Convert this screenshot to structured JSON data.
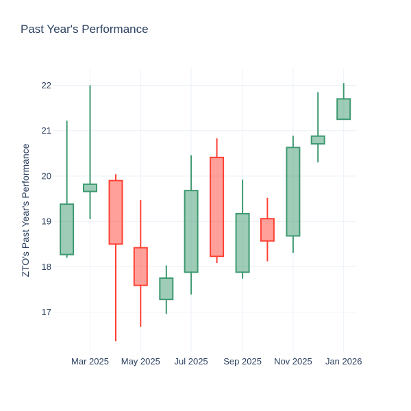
{
  "title": "Past Year's Performance",
  "y_axis_title": "ZTO's Past Year's Performance",
  "colors": {
    "text": "#2a3f5f",
    "grid": "#ebf0f8",
    "background": "#ffffff",
    "increasing_line": "#3d9970",
    "increasing_fill": "rgba(61,153,112,0.5)",
    "decreasing_line": "#ff4136",
    "decreasing_fill": "rgba(255,65,54,0.5)"
  },
  "chart_data": {
    "type": "candlestick",
    "title": "Past Year's Performance",
    "xlabel": "",
    "ylabel": "ZTO's Past Year's Performance",
    "legend": false,
    "grid": true,
    "x": [
      "Feb 2025",
      "Mar 2025",
      "Apr 2025",
      "May 2025",
      "Jun 2025",
      "Jul 2025",
      "Aug 2025",
      "Sep 2025",
      "Oct 2025",
      "Nov 2025",
      "Dec 2025",
      "Jan 2026"
    ],
    "open": [
      18.27,
      19.66,
      19.9,
      18.42,
      17.28,
      17.88,
      20.41,
      17.88,
      19.06,
      18.68,
      20.71,
      21.25
    ],
    "high": [
      21.22,
      22.0,
      20.04,
      19.47,
      18.03,
      20.46,
      20.83,
      19.92,
      19.52,
      20.89,
      21.85,
      22.05
    ],
    "low": [
      18.2,
      19.05,
      16.36,
      16.68,
      16.96,
      17.39,
      18.08,
      17.74,
      18.12,
      18.31,
      20.3,
      21.25
    ],
    "close": [
      19.38,
      19.82,
      18.5,
      17.59,
      17.75,
      19.68,
      18.23,
      19.17,
      18.57,
      20.63,
      20.88,
      21.7
    ],
    "y_ticks": [
      17,
      18,
      19,
      20,
      21,
      22
    ],
    "x_tick_labels": [
      "Mar 2025",
      "May 2025",
      "Jul 2025",
      "Sep 2025",
      "Nov 2025",
      "Jan 2026"
    ],
    "x_tick_indices": [
      1,
      3,
      5,
      7,
      9,
      11
    ],
    "ylim": [
      16.12,
      22.37
    ]
  }
}
